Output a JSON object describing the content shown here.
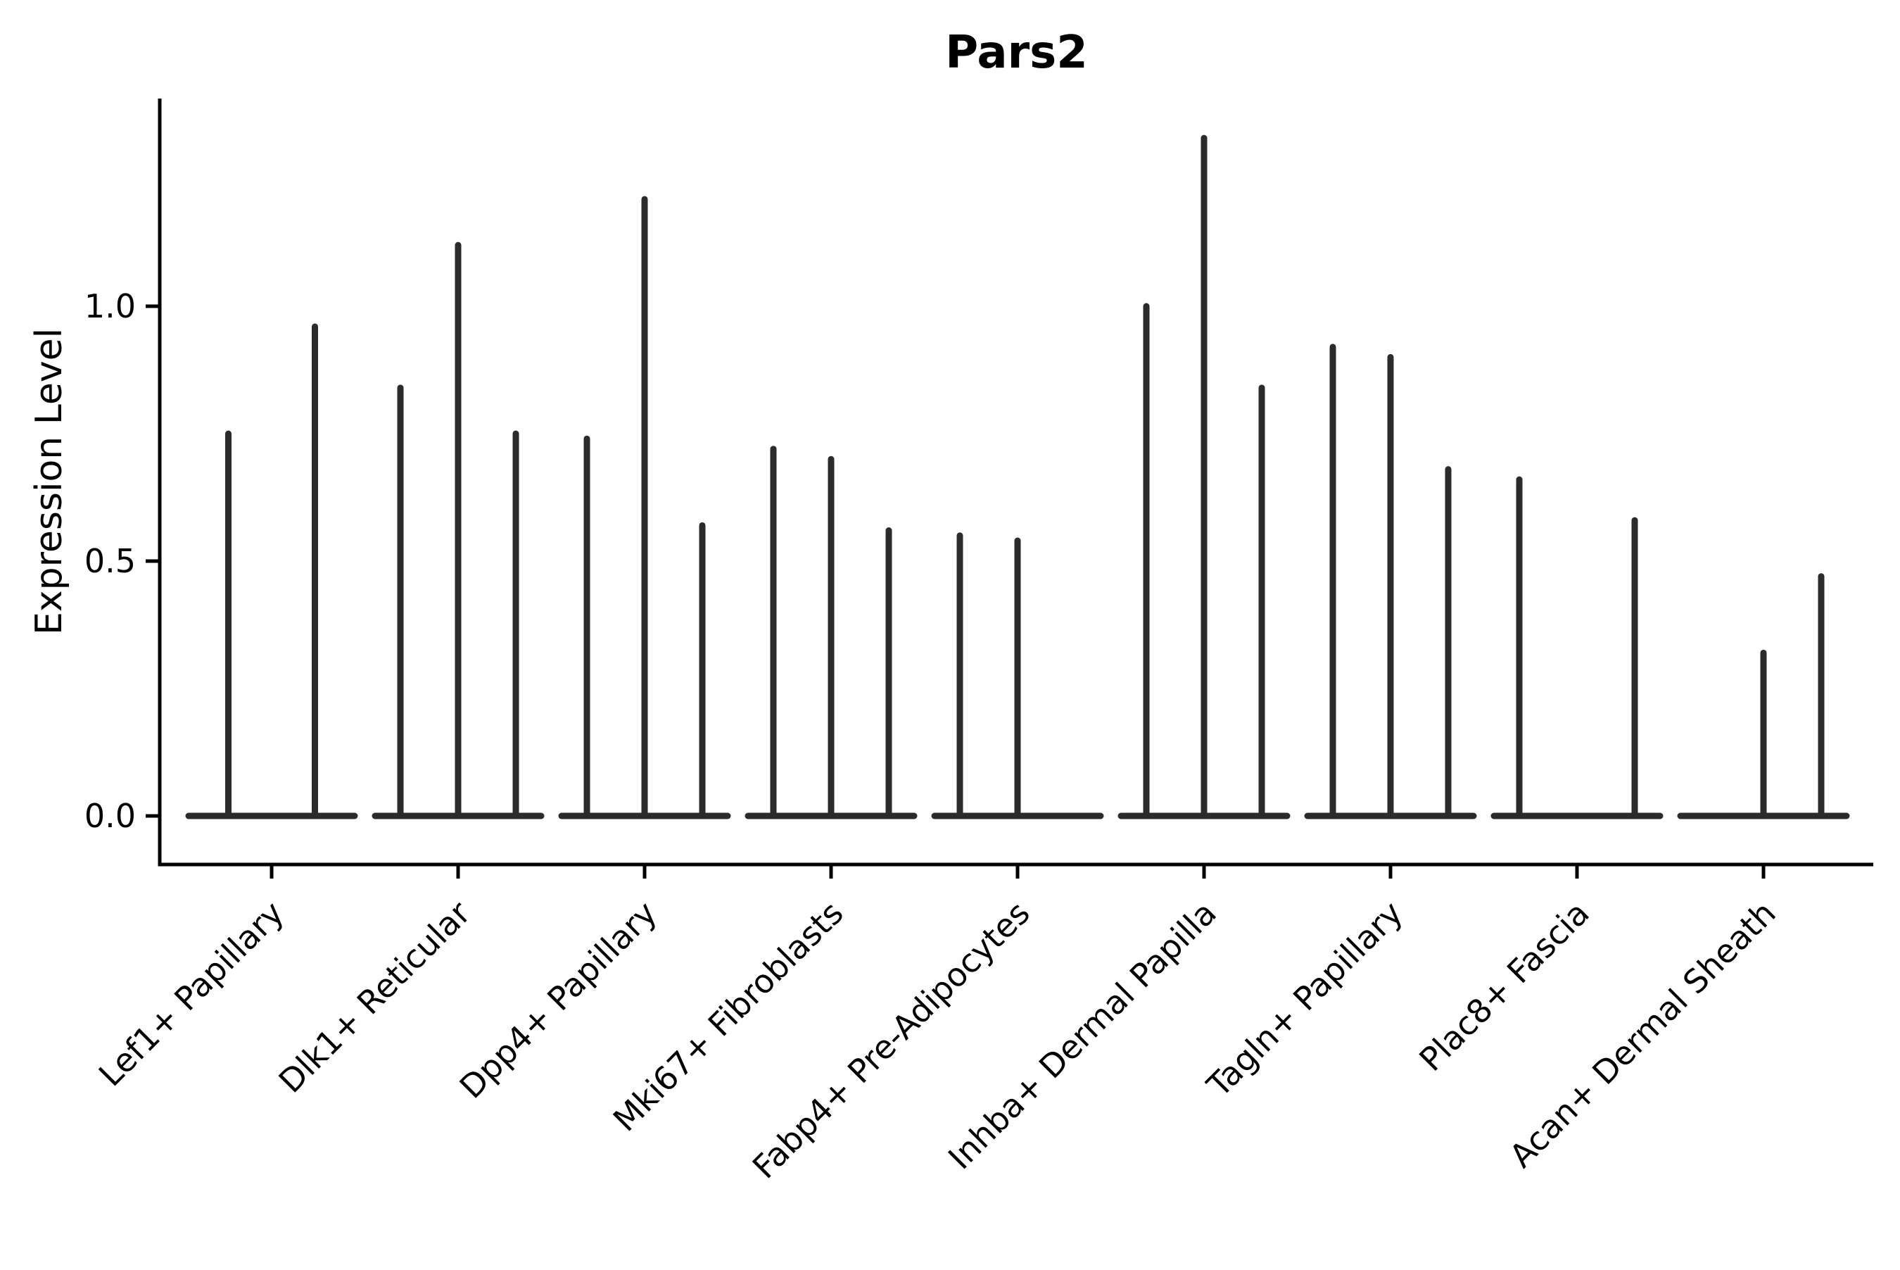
{
  "title": "Pars2",
  "ylabel": "Expression Level",
  "colors": {
    "violin": "#2b2b2b",
    "axis": "#000000",
    "text": "#000000",
    "background": "#ffffff"
  },
  "chart_data": {
    "type": "violin",
    "title": "Pars2",
    "xlabel": "",
    "ylabel": "Expression Level",
    "grid": false,
    "legend": "none",
    "ylim": [
      -0.09,
      1.41
    ],
    "yticks": [
      {
        "label": "0.0",
        "value": 0.0
      },
      {
        "label": "0.5",
        "value": 0.5
      },
      {
        "label": "1.0",
        "value": 1.0
      }
    ],
    "description": "Sparse single-cell expression violins: each category shows 2-3 thin spike-shaped violins; value is the max expression level reached by each spike (0 = flat violin at baseline).",
    "categories": [
      {
        "label": "Lef1+ Papillary",
        "values": [
          0.75,
          0.96
        ]
      },
      {
        "label": "Dlk1+ Reticular",
        "values": [
          0.84,
          1.12,
          0.75
        ]
      },
      {
        "label": "Dpp4+ Papillary",
        "values": [
          0.74,
          1.21,
          0.57
        ]
      },
      {
        "label": "Mki67+ Fibroblasts",
        "values": [
          0.72,
          0.7,
          0.56
        ]
      },
      {
        "label": "Fabp4+ Pre-Adipocytes",
        "values": [
          0.55,
          0.54,
          0
        ]
      },
      {
        "label": "Inhba+ Dermal Papilla",
        "values": [
          1.0,
          1.33,
          0.84
        ]
      },
      {
        "label": "Tagln+ Papillary",
        "values": [
          0.92,
          0.9,
          0.68
        ]
      },
      {
        "label": "Plac8+ Fascia",
        "values": [
          0.66,
          0,
          0.58
        ]
      },
      {
        "label": "Acan+ Dermal Sheath",
        "values": [
          0,
          0.32,
          0.47
        ]
      }
    ]
  }
}
